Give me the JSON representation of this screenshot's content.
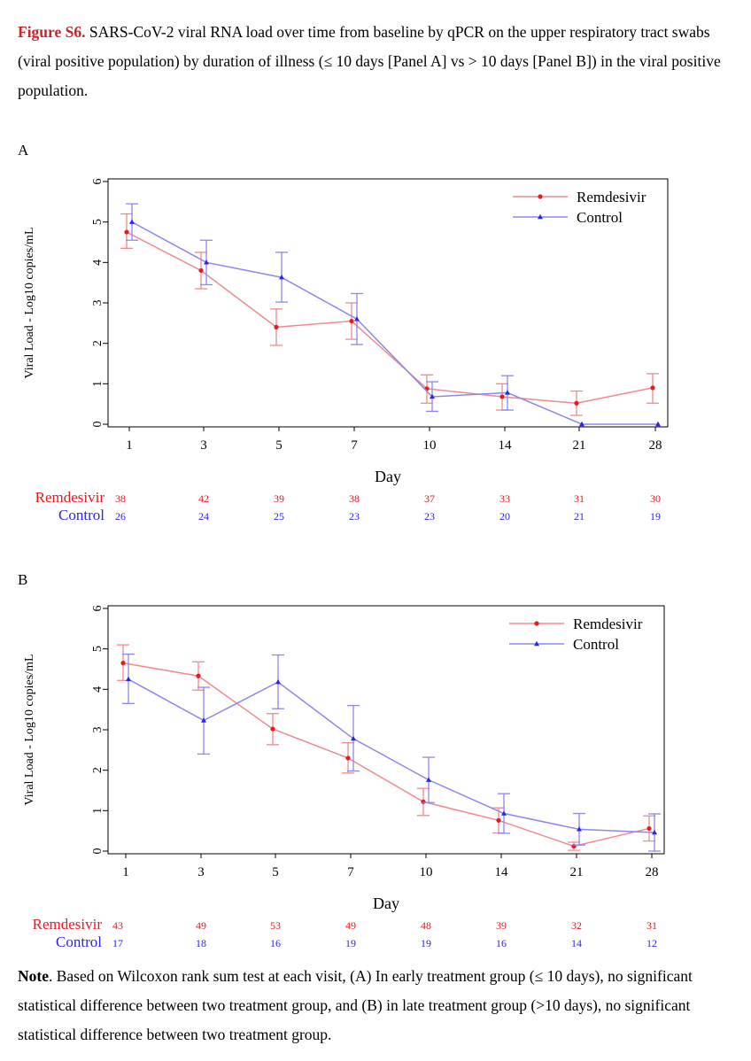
{
  "caption": {
    "figure_label": "Figure S6.",
    "text": " SARS-CoV-2 viral RNA load over time from baseline by qPCR on the upper respiratory tract swabs (viral positive population) by duration of illness (≤ 10 days [Panel A] vs > 10 days [Panel B]) in the viral positive population."
  },
  "note": {
    "label": "Note",
    "text": ". Based on Wilcoxon rank sum test at each visit, (A) In early treatment group (≤ 10 days), no significant statistical difference between two treatment group, and (B) in late treatment group (>10 days), no significant statistical difference between two treatment group."
  },
  "colors": {
    "remdesivir": "#e8191f",
    "control": "#2b25e6",
    "remdesivir_line": "#f08a8f",
    "control_line": "#8b87ee"
  },
  "chart_data": [
    {
      "panel": "A",
      "type": "line",
      "xlabel": "Day",
      "ylabel": "Viral Load - Log10 copies/mL",
      "categories": [
        "1",
        "3",
        "5",
        "7",
        "10",
        "14",
        "21",
        "28"
      ],
      "ylim": [
        0,
        6
      ],
      "yticks": [
        "0",
        "1",
        "2",
        "3",
        "4",
        "5",
        "6"
      ],
      "legend_position": "top-right",
      "series": [
        {
          "name": "Remdesivir",
          "values": [
            4.75,
            3.8,
            2.4,
            2.55,
            0.88,
            0.68,
            0.52,
            0.9
          ],
          "err_low": [
            4.35,
            3.35,
            1.95,
            2.1,
            0.52,
            0.35,
            0.22,
            0.52
          ],
          "err_high": [
            5.2,
            4.25,
            2.85,
            3.0,
            1.22,
            1.0,
            0.82,
            1.25
          ]
        },
        {
          "name": "Control",
          "values": [
            5.0,
            4.0,
            3.63,
            2.6,
            0.68,
            0.78,
            0.0,
            0.0
          ],
          "err_low": [
            4.55,
            3.45,
            3.02,
            1.97,
            0.32,
            0.35,
            0.0,
            0.0
          ],
          "err_high": [
            5.45,
            4.55,
            4.25,
            3.23,
            1.05,
            1.2,
            0.0,
            0.0
          ]
        }
      ],
      "n_at_risk": {
        "Remdesivir": [
          "38",
          "42",
          "39",
          "38",
          "37",
          "33",
          "31",
          "30"
        ],
        "Control": [
          "26",
          "24",
          "25",
          "23",
          "23",
          "20",
          "21",
          "19"
        ]
      }
    },
    {
      "panel": "B",
      "type": "line",
      "xlabel": "Day",
      "ylabel": "Viral Load - Log10 copies/mL",
      "categories": [
        "1",
        "3",
        "5",
        "7",
        "10",
        "14",
        "21",
        "28"
      ],
      "ylim": [
        0,
        6
      ],
      "yticks": [
        "0",
        "1",
        "2",
        "3",
        "4",
        "5",
        "6"
      ],
      "legend_position": "top-right",
      "series": [
        {
          "name": "Remdesivir",
          "values": [
            4.65,
            4.33,
            3.02,
            2.3,
            1.22,
            0.76,
            0.12,
            0.56
          ],
          "err_low": [
            4.22,
            3.98,
            2.63,
            1.93,
            0.88,
            0.45,
            0.02,
            0.25
          ],
          "err_high": [
            5.1,
            4.68,
            3.4,
            2.68,
            1.55,
            1.07,
            0.22,
            0.87
          ]
        },
        {
          "name": "Control",
          "values": [
            4.25,
            3.23,
            4.18,
            2.78,
            1.76,
            0.93,
            0.54,
            0.46
          ],
          "err_low": [
            3.65,
            2.4,
            3.52,
            1.98,
            1.2,
            0.44,
            0.15,
            0.0
          ],
          "err_high": [
            4.87,
            4.05,
            4.85,
            3.6,
            2.32,
            1.42,
            0.93,
            0.92
          ]
        }
      ],
      "n_at_risk": {
        "Remdesivir": [
          "43",
          "49",
          "53",
          "49",
          "48",
          "39",
          "32",
          "31"
        ],
        "Control": [
          "17",
          "18",
          "16",
          "19",
          "19",
          "16",
          "14",
          "12"
        ]
      }
    }
  ]
}
